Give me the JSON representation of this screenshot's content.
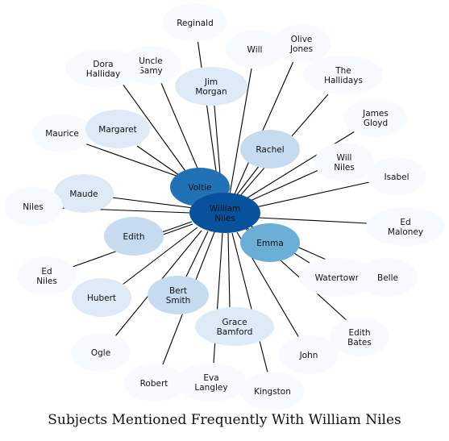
{
  "title": "Subjects Mentioned Frequently With William Niles",
  "center": {
    "id": "william-niles",
    "label": [
      "William",
      "Niles"
    ]
  },
  "colors": {
    "center": "#08519c",
    "strong": "#2171b5",
    "medium": "#6baed6",
    "light": "#c6dbef",
    "pale": "#deebf7",
    "faint": "#f7fbff",
    "edge": "#000000",
    "text": "#111111"
  },
  "nodes": [
    {
      "id": "reginald",
      "label": [
        "Reginald"
      ],
      "shade": "faint"
    },
    {
      "id": "will",
      "label": [
        "Will"
      ],
      "shade": "faint"
    },
    {
      "id": "olive-jones",
      "label": [
        "Olive",
        "Jones"
      ],
      "shade": "faint"
    },
    {
      "id": "uncle-samy",
      "label": [
        "Uncle",
        "Samy"
      ],
      "shade": "faint"
    },
    {
      "id": "dora-halliday",
      "label": [
        "Dora",
        "Halliday"
      ],
      "shade": "faint"
    },
    {
      "id": "the-hallidays",
      "label": [
        "The",
        "Hallidays"
      ],
      "shade": "faint"
    },
    {
      "id": "jim-morgan",
      "label": [
        "Jim",
        "Morgan"
      ],
      "shade": "pale"
    },
    {
      "id": "james-gloyd",
      "label": [
        "James",
        "Gloyd"
      ],
      "shade": "faint"
    },
    {
      "id": "maurice",
      "label": [
        "Maurice"
      ],
      "shade": "faint"
    },
    {
      "id": "margaret",
      "label": [
        "Margaret"
      ],
      "shade": "pale"
    },
    {
      "id": "rachel",
      "label": [
        "Rachel"
      ],
      "shade": "light"
    },
    {
      "id": "will-niles",
      "label": [
        "Will",
        "Niles"
      ],
      "shade": "faint"
    },
    {
      "id": "isabel",
      "label": [
        "Isabel"
      ],
      "shade": "faint"
    },
    {
      "id": "voltie",
      "label": [
        "Voltie"
      ],
      "shade": "strong"
    },
    {
      "id": "maude",
      "label": [
        "Maude"
      ],
      "shade": "pale"
    },
    {
      "id": "niles",
      "label": [
        "Niles"
      ],
      "shade": "faint"
    },
    {
      "id": "ed-maloney",
      "label": [
        "Ed",
        "Maloney"
      ],
      "shade": "faint"
    },
    {
      "id": "edith",
      "label": [
        "Edith"
      ],
      "shade": "light"
    },
    {
      "id": "emma",
      "label": [
        "Emma"
      ],
      "shade": "medium"
    },
    {
      "id": "ed-niles",
      "label": [
        "Ed",
        "Niles"
      ],
      "shade": "faint"
    },
    {
      "id": "watertown",
      "label": [
        "Watertown"
      ],
      "shade": "faint"
    },
    {
      "id": "belle",
      "label": [
        "Belle"
      ],
      "shade": "faint"
    },
    {
      "id": "hubert",
      "label": [
        "Hubert"
      ],
      "shade": "pale"
    },
    {
      "id": "bert-smith",
      "label": [
        "Bert",
        "Smith"
      ],
      "shade": "light"
    },
    {
      "id": "grace-bamford",
      "label": [
        "Grace",
        "Bamford"
      ],
      "shade": "pale"
    },
    {
      "id": "edith-bates",
      "label": [
        "Edith",
        "Bates"
      ],
      "shade": "faint"
    },
    {
      "id": "ogle",
      "label": [
        "Ogle"
      ],
      "shade": "faint"
    },
    {
      "id": "john",
      "label": [
        "John"
      ],
      "shade": "faint"
    },
    {
      "id": "robert",
      "label": [
        "Robert"
      ],
      "shade": "faint"
    },
    {
      "id": "eva-langley",
      "label": [
        "Eva",
        "Langley"
      ],
      "shade": "faint"
    },
    {
      "id": "kingston",
      "label": [
        "Kingston"
      ],
      "shade": "faint"
    }
  ]
}
